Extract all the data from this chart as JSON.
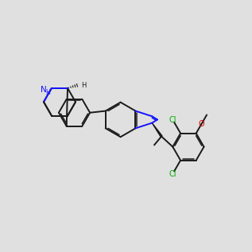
{
  "bg": "#e0e0e0",
  "bc": "#1a1a1a",
  "Nc": "#1414ff",
  "Clc": "#00aa00",
  "Oc": "#dd0000",
  "lw": 1.4,
  "lw2": 1.1,
  "fs": 7.5
}
